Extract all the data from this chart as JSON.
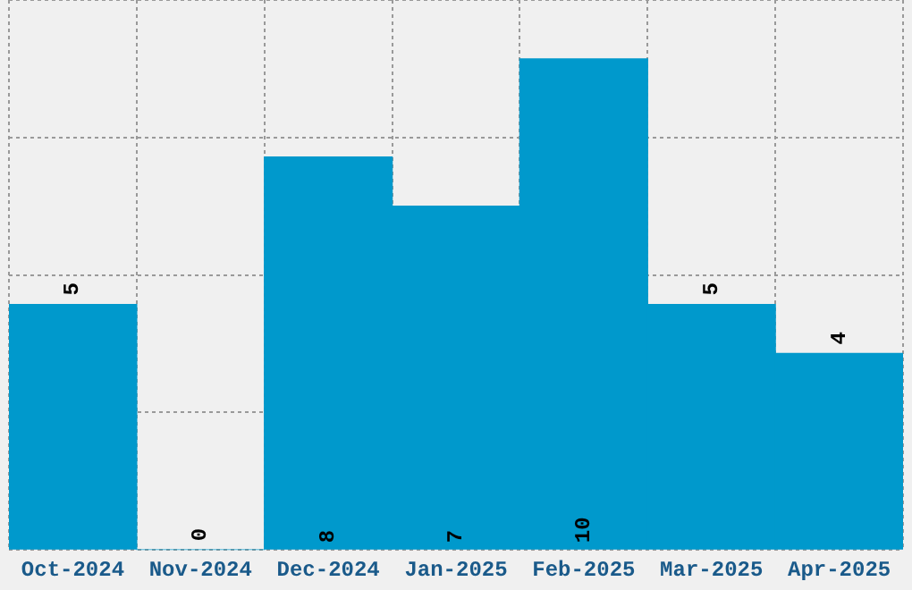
{
  "chart_data": {
    "type": "bar",
    "categories": [
      "Oct-2024",
      "Nov-2024",
      "Dec-2024",
      "Jan-2025",
      "Feb-2025",
      "Mar-2025",
      "Apr-2025"
    ],
    "values": [
      5,
      0,
      8,
      7,
      10,
      5,
      4
    ],
    "color": "#0099cc",
    "ylim": [
      0,
      11.2
    ],
    "yticks": [
      {
        "value": 0,
        "label": null
      },
      {
        "value": 2.8,
        "label": null
      },
      {
        "value": 5.6,
        "label": null
      },
      {
        "value": 8.4,
        "label": null
      },
      {
        "value": 11.2,
        "label": null
      }
    ],
    "grid": true,
    "tick_labels": "x",
    "data_labels": true,
    "legend": false
  }
}
